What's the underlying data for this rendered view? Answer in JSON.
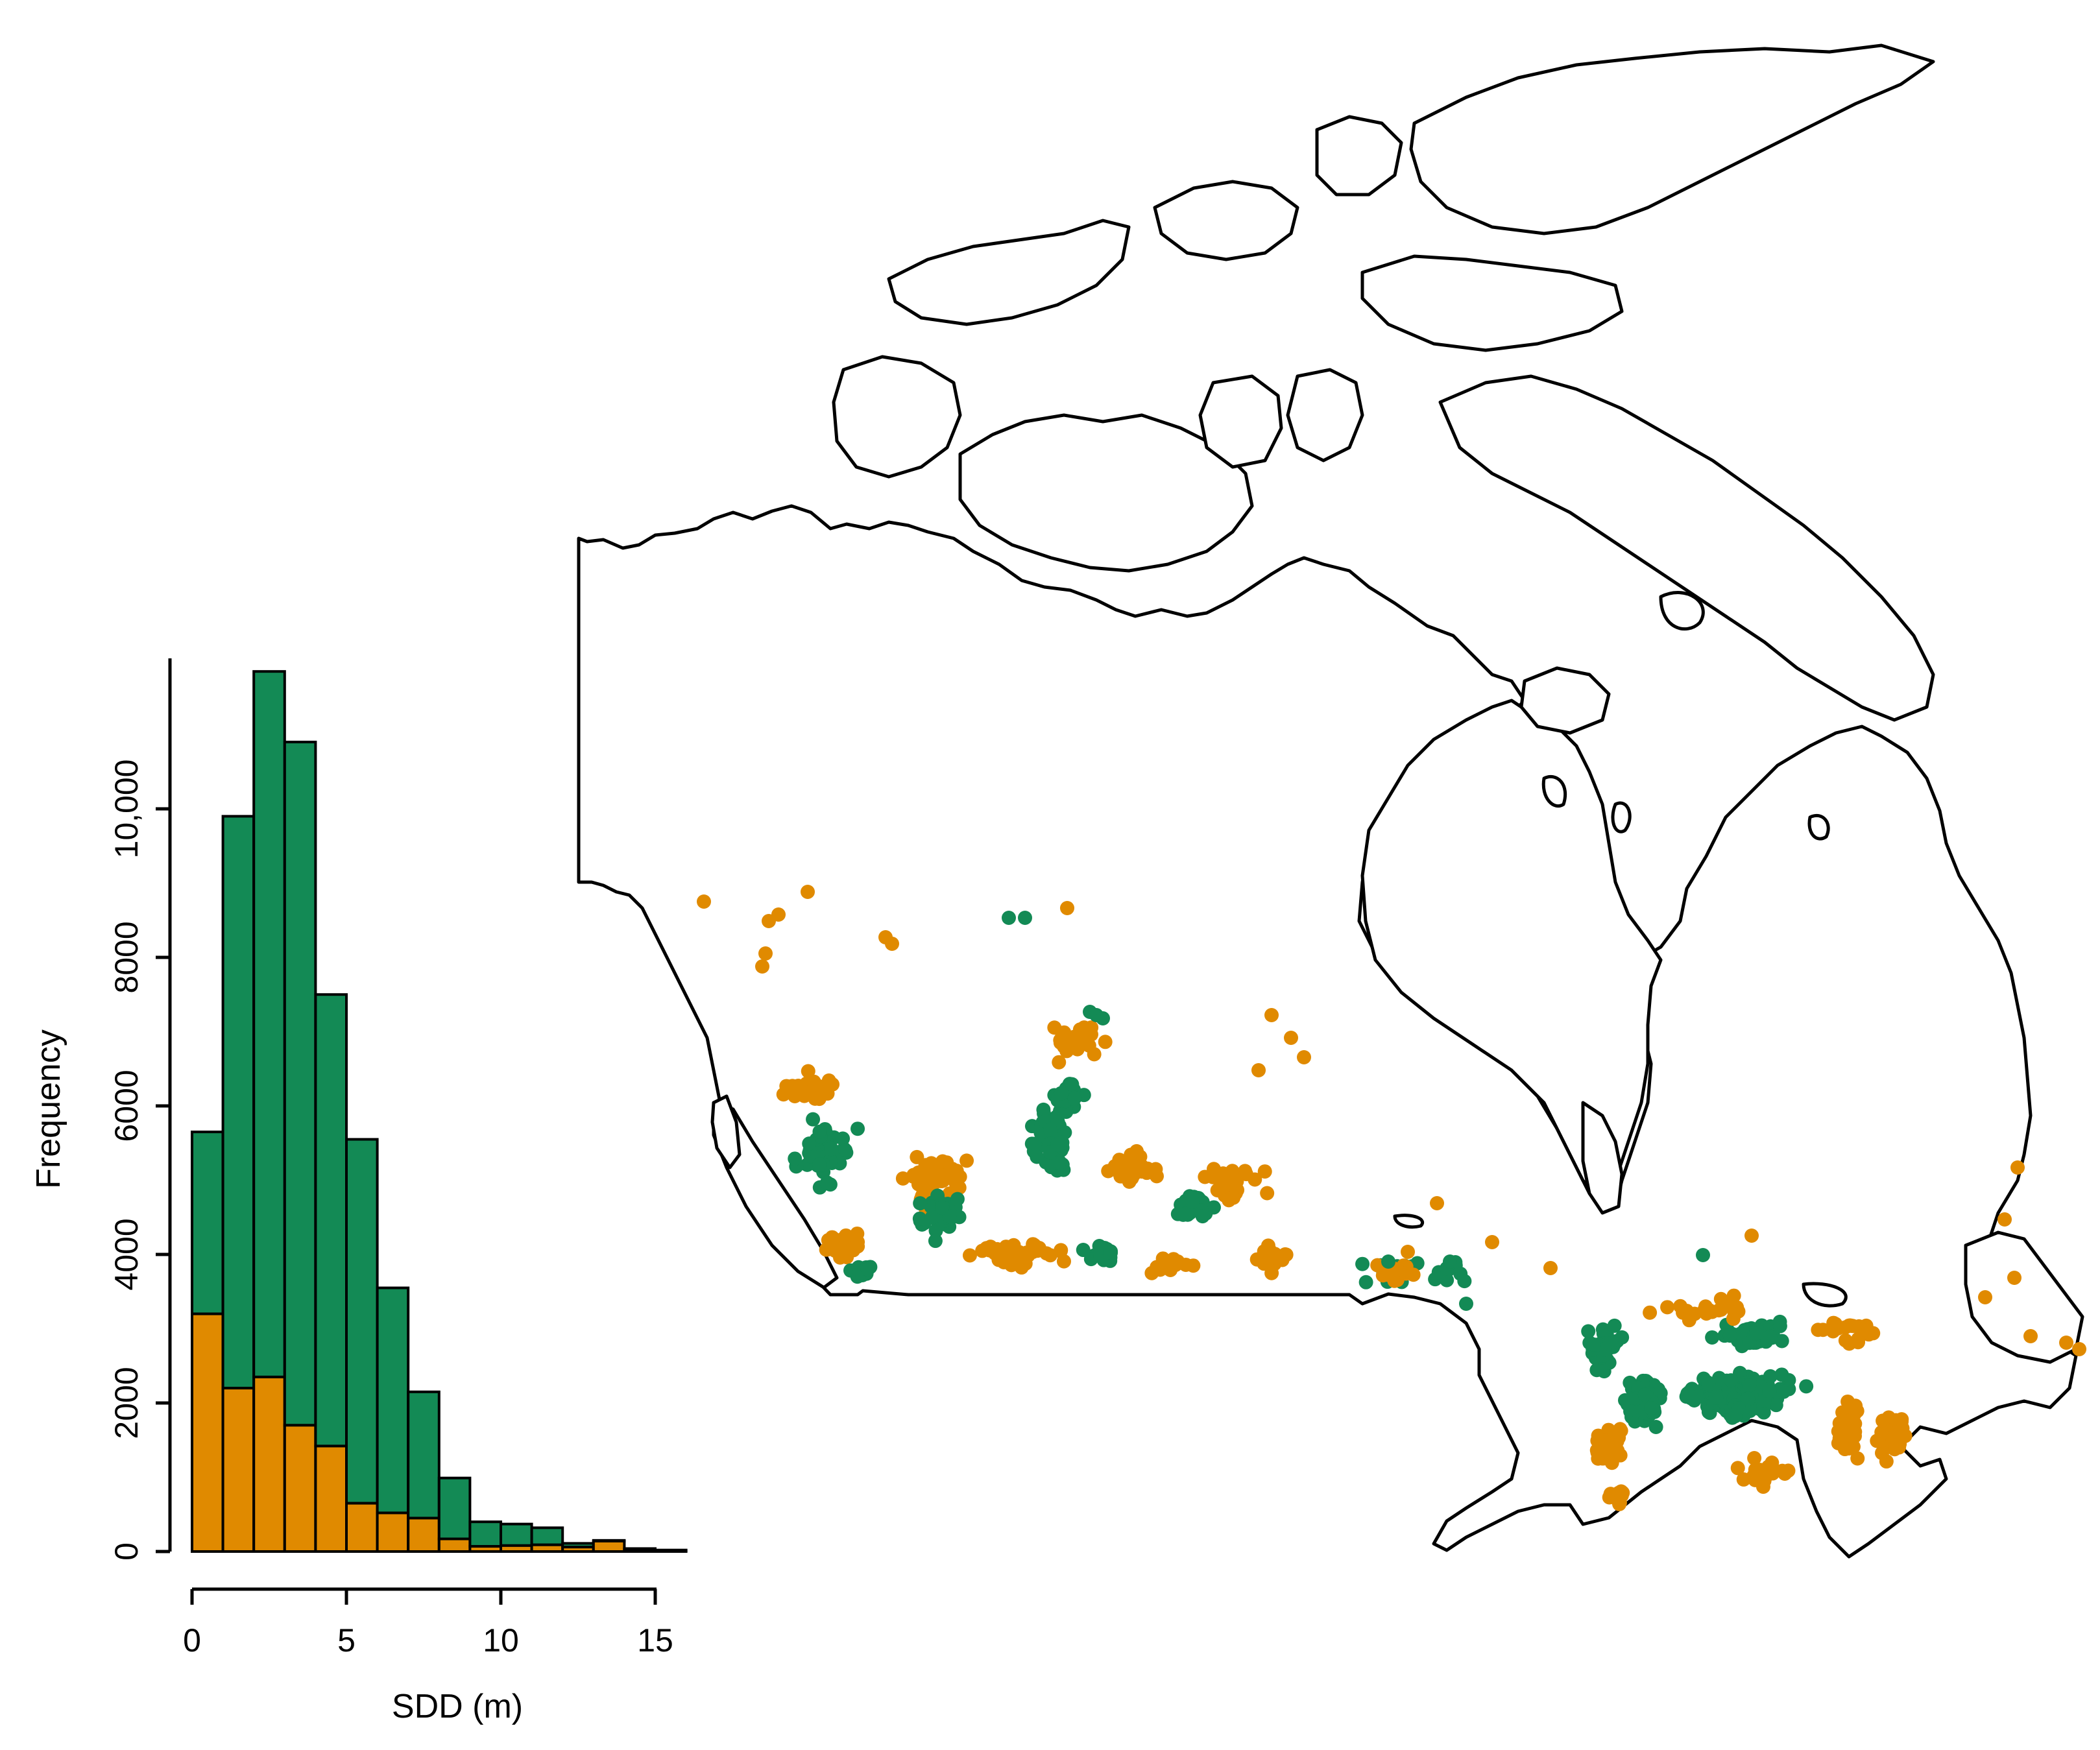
{
  "colors": {
    "green": "#138a55",
    "orange": "#e08a00",
    "outline": "#000000"
  },
  "chart_data": [
    {
      "type": "bar",
      "subtype": "stacked-histogram",
      "xlabel": "SDD (m)",
      "ylabel": "Frequency",
      "bin_width": 1,
      "bin_edges": [
        0,
        1,
        2,
        3,
        4,
        5,
        6,
        7,
        8,
        9,
        10,
        11,
        12,
        13,
        14,
        15,
        16
      ],
      "xlim": [
        0,
        17
      ],
      "ylim": [
        0,
        12000
      ],
      "x_ticks": [
        "0",
        "5",
        "10",
        "15"
      ],
      "y_ticks": [
        "0",
        "2000",
        "4000",
        "6000",
        "8000",
        "10,000"
      ],
      "series": [
        {
          "color": "orange",
          "values": [
            3200,
            2200,
            2350,
            1700,
            1420,
            650,
            520,
            450,
            170,
            70,
            80,
            90,
            60,
            140,
            30,
            10
          ]
        },
        {
          "color": "green",
          "values": [
            2450,
            7700,
            9500,
            9200,
            6080,
            4900,
            3030,
            1700,
            820,
            330,
            290,
            230,
            50,
            10,
            10,
            10
          ]
        }
      ],
      "totals": [
        5650,
        9900,
        11850,
        10900,
        7500,
        5550,
        3550,
        2150,
        990,
        400,
        370,
        320,
        110,
        150,
        40,
        20
      ]
    },
    {
      "type": "scatter",
      "subtype": "map",
      "region": "Canada",
      "series": [
        {
          "color": "orange",
          "approx_count": 620
        },
        {
          "color": "green",
          "approx_count": 800
        }
      ]
    }
  ]
}
